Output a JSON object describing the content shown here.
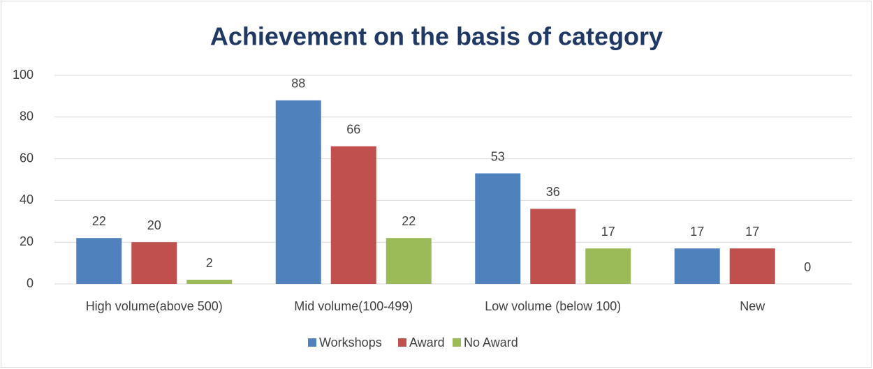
{
  "chart_data": {
    "type": "bar",
    "title": "Achievement on the basis of category",
    "categories": [
      "High volume(above 500)",
      "Mid volume(100-499)",
      "Low volume (below 100)",
      "New"
    ],
    "series": [
      {
        "name": "Workshops",
        "color": "#4f81bd",
        "values": [
          22,
          88,
          53,
          17
        ]
      },
      {
        "name": "Award",
        "color": "#c0504d",
        "values": [
          20,
          66,
          36,
          17
        ]
      },
      {
        "name": "No Award",
        "color": "#9bbb59",
        "values": [
          2,
          22,
          17,
          0
        ]
      }
    ],
    "ylim": [
      0,
      100
    ],
    "yticks": [
      0,
      20,
      40,
      60,
      80,
      100
    ],
    "grid": true,
    "legend": "bottom"
  }
}
